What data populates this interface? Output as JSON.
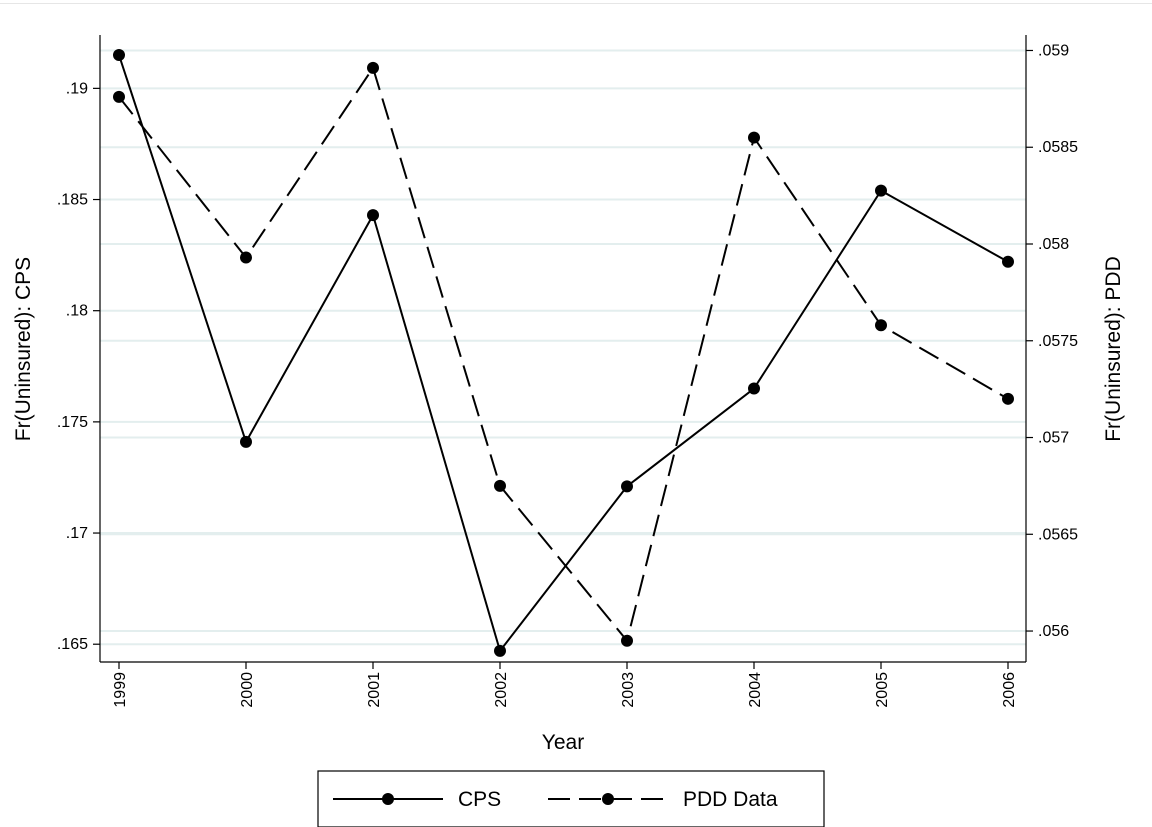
{
  "chart_data": {
    "type": "line",
    "xlabel": "Year",
    "ylabel_left": "Fr(Uninsured): CPS",
    "ylabel_right": "Fr(Uninsured): PDD",
    "categories": [
      "1999",
      "2000",
      "2001",
      "2002",
      "2003",
      "2004",
      "2005",
      "2006"
    ],
    "y_left": {
      "range": [
        0.1642,
        0.1924
      ],
      "ticks": [
        0.165,
        0.17,
        0.175,
        0.18,
        0.185,
        0.19
      ],
      "tick_labels": [
        ".165",
        ".17",
        ".175",
        ".18",
        ".185",
        ".19"
      ]
    },
    "y_right": {
      "range": [
        0.05584,
        0.05908
      ],
      "ticks": [
        0.056,
        0.0565,
        0.057,
        0.0575,
        0.058,
        0.0585,
        0.059
      ],
      "tick_labels": [
        ".056",
        ".0565",
        ".057",
        ".0575",
        ".058",
        ".0585",
        ".059"
      ]
    },
    "grid": true,
    "legend_position": "bottom",
    "series": [
      {
        "name": "CPS",
        "axis": "left",
        "style": "solid",
        "color": "#000000",
        "values": [
          0.1915,
          0.1741,
          0.1843,
          0.1647,
          0.1721,
          0.1765,
          0.1854,
          0.1822
        ]
      },
      {
        "name": "PDD Data",
        "axis": "right",
        "style": "dashed",
        "color": "#000000",
        "values": [
          0.05876,
          0.05793,
          0.05891,
          0.05675,
          0.05595,
          0.05855,
          0.05758,
          0.0572
        ]
      }
    ]
  }
}
